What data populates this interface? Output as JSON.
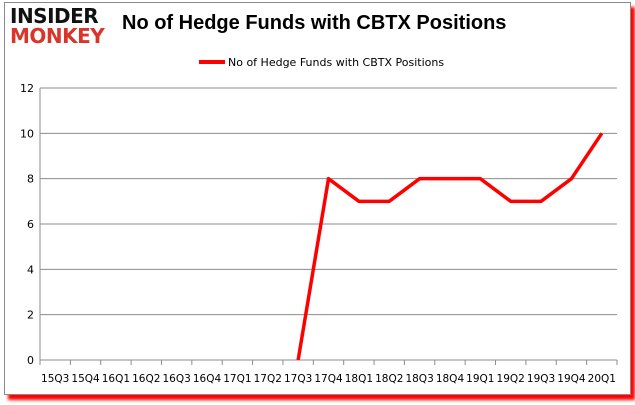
{
  "logo": {
    "line1": "INSIDER",
    "line2": "MONKEY"
  },
  "chart_data": {
    "type": "line",
    "title": "No of Hedge Funds with CBTX Positions",
    "xlabel": "",
    "ylabel": "",
    "categories": [
      "15Q3",
      "15Q4",
      "16Q1",
      "16Q2",
      "16Q3",
      "16Q4",
      "17Q1",
      "17Q2",
      "17Q3",
      "17Q4",
      "18Q1",
      "18Q2",
      "18Q3",
      "18Q4",
      "19Q1",
      "19Q2",
      "19Q3",
      "19Q4",
      "20Q1"
    ],
    "series": [
      {
        "name": "No of Hedge Funds with CBTX Positions",
        "color": "#ff0000",
        "values": [
          null,
          null,
          null,
          null,
          null,
          null,
          null,
          null,
          0,
          8,
          7,
          7,
          8,
          8,
          8,
          7,
          7,
          8,
          10
        ]
      }
    ],
    "ylim": [
      0,
      12
    ],
    "yticks": [
      0,
      2,
      4,
      6,
      8,
      10,
      12
    ],
    "grid": true,
    "legend": "top-center"
  }
}
